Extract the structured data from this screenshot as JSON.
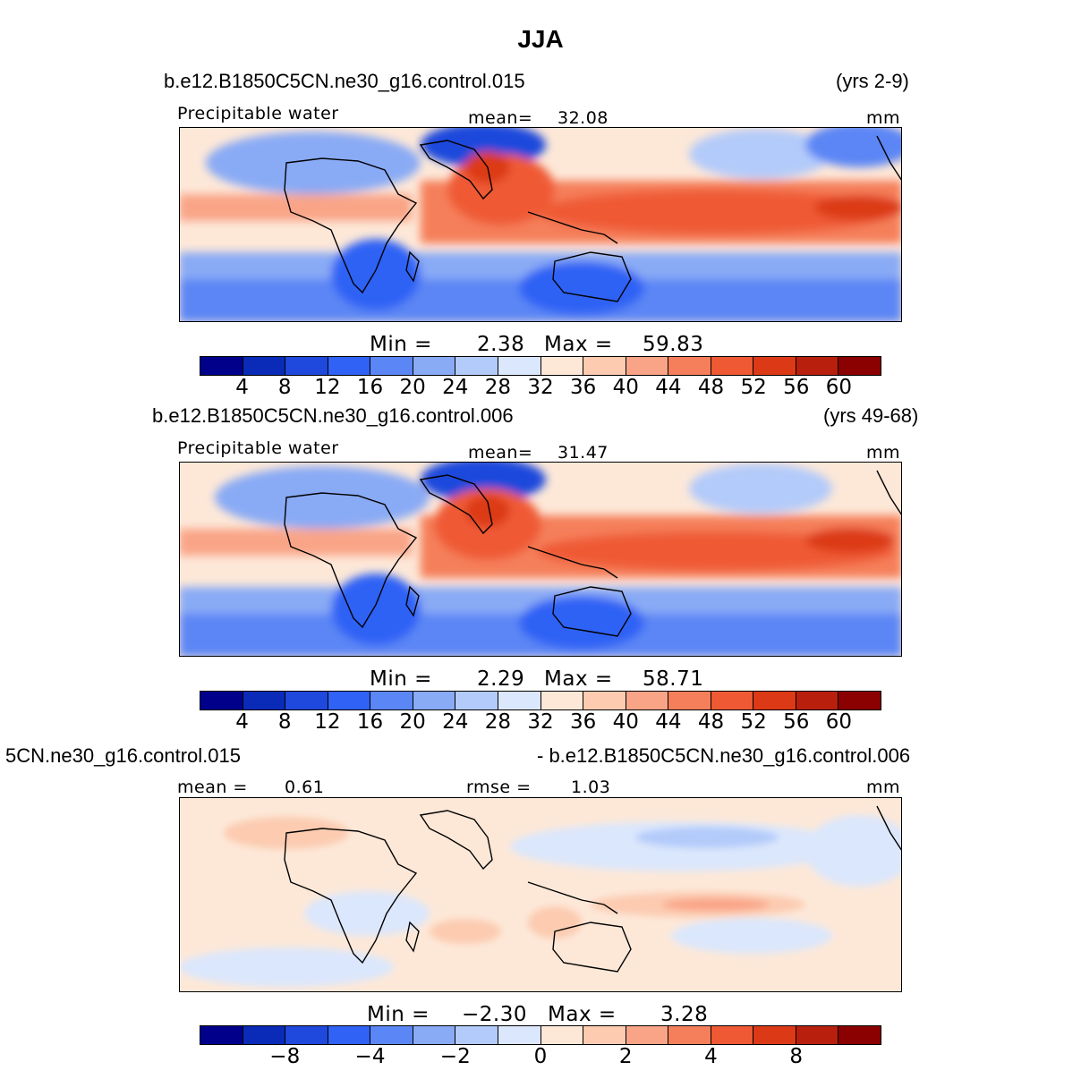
{
  "title": "JJA",
  "units": "mm",
  "palette": [
    "#00008b",
    "#0a2bb8",
    "#1f48dc",
    "#2f62f5",
    "#5b86f5",
    "#89aaf5",
    "#b3cbfa",
    "#dbe7fc",
    "#fde8d8",
    "#fccbb0",
    "#f9a487",
    "#f57f5a",
    "#ef5a35",
    "#dc3a16",
    "#b8200d",
    "#8b0000"
  ],
  "panels": [
    {
      "case": "b.e12.B1850C5CN.ne30_g16.control.015",
      "years": "(yrs 2-9)",
      "field": "Precipitable water",
      "stat_label": "mean=",
      "stat_value": "32.08",
      "units": "mm",
      "min_label": "Min =",
      "min_value": "2.38",
      "max_label": "Max =",
      "max_value": "59.83",
      "ticks": [
        "4",
        "8",
        "12",
        "16",
        "20",
        "24",
        "28",
        "32",
        "36",
        "40",
        "44",
        "48",
        "52",
        "56",
        "60"
      ]
    },
    {
      "case": "b.e12.B1850C5CN.ne30_g16.control.006",
      "years": "(yrs 49-68)",
      "field": "Precipitable water",
      "stat_label": "mean=",
      "stat_value": "31.47",
      "units": "mm",
      "min_label": "Min =",
      "min_value": "2.29",
      "max_label": "Max =",
      "max_value": "58.71",
      "ticks": [
        "4",
        "8",
        "12",
        "16",
        "20",
        "24",
        "28",
        "32",
        "36",
        "40",
        "44",
        "48",
        "52",
        "56",
        "60"
      ]
    },
    {
      "case_left": "5CN.ne30_g16.control.015",
      "case_right": "- b.e12.B1850C5CN.ne30_g16.control.006",
      "mean_label": "mean =",
      "mean_value": "0.61",
      "rmse_label": "rmse =",
      "rmse_value": "1.03",
      "units": "mm",
      "min_label": "Min =",
      "min_value": "−2.30",
      "max_label": "Max =",
      "max_value": "3.28",
      "ticks": [
        "−8",
        "−4",
        "−2",
        "0",
        "2",
        "4",
        "8"
      ]
    }
  ],
  "chart_data": [
    {
      "type": "heatmap",
      "title": "b.e12.B1850C5CN.ne30_g16.control.015 (yrs 2-9)",
      "variable": "Precipitable water",
      "units": "mm",
      "mean": 32.08,
      "min": 2.38,
      "max": 59.83,
      "levels": [
        4,
        8,
        12,
        16,
        20,
        24,
        28,
        32,
        36,
        40,
        44,
        48,
        52,
        56,
        60
      ]
    },
    {
      "type": "heatmap",
      "title": "b.e12.B1850C5CN.ne30_g16.control.006 (yrs 49-68)",
      "variable": "Precipitable water",
      "units": "mm",
      "mean": 31.47,
      "min": 2.29,
      "max": 58.71,
      "levels": [
        4,
        8,
        12,
        16,
        20,
        24,
        28,
        32,
        36,
        40,
        44,
        48,
        52,
        56,
        60
      ]
    },
    {
      "type": "heatmap",
      "title": "control.015 - control.006",
      "units": "mm",
      "mean": 0.61,
      "rmse": 1.03,
      "min": -2.3,
      "max": 3.28,
      "levels": [
        -8,
        -4,
        -2,
        0,
        2,
        4,
        8
      ]
    }
  ]
}
